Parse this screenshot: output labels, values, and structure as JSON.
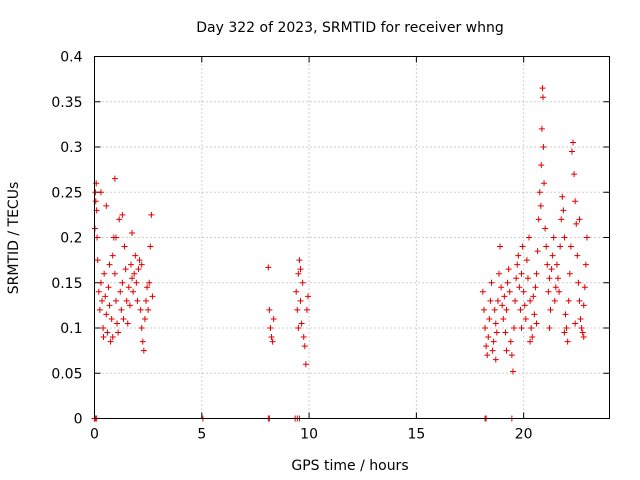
{
  "chart_data": {
    "type": "scatter",
    "title": "Day 322 of 2023, SRMTID for receiver whng",
    "xlabel": "GPS time / hours",
    "ylabel": "SRMTID / TECUs",
    "xlim": [
      0,
      24
    ],
    "ylim": [
      0,
      0.4
    ],
    "grid": true,
    "xticks": [
      0,
      5,
      10,
      15,
      20
    ],
    "xtick_labels": [
      "0",
      "5",
      "10",
      "15",
      "20"
    ],
    "yticks": [
      0,
      0.05,
      0.1,
      0.15,
      0.2,
      0.25,
      0.3,
      0.35,
      0.4
    ],
    "ytick_labels": [
      "0",
      "0.05",
      "0.1",
      "0.15",
      "0.2",
      "0.25",
      "0.3",
      "0.35",
      "0.4"
    ],
    "marker": "plus",
    "color": "#e00000",
    "series": [
      {
        "name": "SRMTID",
        "points": [
          [
            0.02,
            0.21
          ],
          [
            0.04,
            0.25
          ],
          [
            0.06,
            0.24
          ],
          [
            0.08,
            0.26
          ],
          [
            0.1,
            0.23
          ],
          [
            0.12,
            0.2
          ],
          [
            0.15,
            0.175
          ],
          [
            0.2,
            0.14
          ],
          [
            0.25,
            0.12
          ],
          [
            0.3,
            0.15
          ],
          [
            0.35,
            0.13
          ],
          [
            0.4,
            0.1
          ],
          [
            0.45,
            0.16
          ],
          [
            0.5,
            0.135
          ],
          [
            0.55,
            0.115
          ],
          [
            0.6,
            0.095
          ],
          [
            0.65,
            0.145
          ],
          [
            0.7,
            0.125
          ],
          [
            0.75,
            0.085
          ],
          [
            0.8,
            0.11
          ],
          [
            0.85,
            0.18
          ],
          [
            0.9,
            0.2
          ],
          [
            0.95,
            0.16
          ],
          [
            1.0,
            0.13
          ],
          [
            1.05,
            0.105
          ],
          [
            1.1,
            0.095
          ],
          [
            1.15,
            0.22
          ],
          [
            1.2,
            0.14
          ],
          [
            1.25,
            0.12
          ],
          [
            1.3,
            0.15
          ],
          [
            1.35,
            0.11
          ],
          [
            1.4,
            0.19
          ],
          [
            1.45,
            0.165
          ],
          [
            1.5,
            0.13
          ],
          [
            1.55,
            0.105
          ],
          [
            1.6,
            0.145
          ],
          [
            1.65,
            0.125
          ],
          [
            1.7,
            0.17
          ],
          [
            1.75,
            0.155
          ],
          [
            1.8,
            0.14
          ],
          [
            1.85,
            0.16
          ],
          [
            1.9,
            0.18
          ],
          [
            1.95,
            0.15
          ],
          [
            2.0,
            0.13
          ],
          [
            2.05,
            0.165
          ],
          [
            2.1,
            0.175
          ],
          [
            2.15,
            0.12
          ],
          [
            2.2,
            0.1
          ],
          [
            2.25,
            0.085
          ],
          [
            2.3,
            0.075
          ],
          [
            2.35,
            0.11
          ],
          [
            2.4,
            0.13
          ],
          [
            2.45,
            0.145
          ],
          [
            2.5,
            0.12
          ],
          [
            2.55,
            0.15
          ],
          [
            2.6,
            0.19
          ],
          [
            2.65,
            0.225
          ],
          [
            2.7,
            0.135
          ],
          [
            0.3,
            0.25
          ],
          [
            0.55,
            0.235
          ],
          [
            0.95,
            0.265
          ],
          [
            1.0,
            0.2
          ],
          [
            1.3,
            0.225
          ],
          [
            0.7,
            0.17
          ],
          [
            1.75,
            0.205
          ],
          [
            2.2,
            0.17
          ],
          [
            0.42,
            0.09
          ],
          [
            0.85,
            0.09
          ],
          [
            8.1,
            0.167
          ],
          [
            8.15,
            0.12
          ],
          [
            8.2,
            0.1
          ],
          [
            8.25,
            0.09
          ],
          [
            8.3,
            0.085
          ],
          [
            8.35,
            0.11
          ],
          [
            9.4,
            0.14
          ],
          [
            9.45,
            0.12
          ],
          [
            9.5,
            0.16
          ],
          [
            9.55,
            0.175
          ],
          [
            9.6,
            0.13
          ],
          [
            9.65,
            0.105
          ],
          [
            9.7,
            0.15
          ],
          [
            9.75,
            0.09
          ],
          [
            9.8,
            0.08
          ],
          [
            9.85,
            0.06
          ],
          [
            9.9,
            0.12
          ],
          [
            9.95,
            0.135
          ],
          [
            9.5,
            0.1
          ],
          [
            9.6,
            0.165
          ],
          [
            18.1,
            0.14
          ],
          [
            18.15,
            0.12
          ],
          [
            18.2,
            0.1
          ],
          [
            18.25,
            0.08
          ],
          [
            18.3,
            0.07
          ],
          [
            18.35,
            0.09
          ],
          [
            18.4,
            0.11
          ],
          [
            18.45,
            0.13
          ],
          [
            18.5,
            0.15
          ],
          [
            18.55,
            0.075
          ],
          [
            18.6,
            0.085
          ],
          [
            18.65,
            0.12
          ],
          [
            18.7,
            0.105
          ],
          [
            18.75,
            0.095
          ],
          [
            18.8,
            0.13
          ],
          [
            18.85,
            0.16
          ],
          [
            18.9,
            0.19
          ],
          [
            18.95,
            0.145
          ],
          [
            19.0,
            0.125
          ],
          [
            19.05,
            0.11
          ],
          [
            19.1,
            0.135
          ],
          [
            19.15,
            0.095
          ],
          [
            19.2,
            0.12
          ],
          [
            19.25,
            0.15
          ],
          [
            19.3,
            0.165
          ],
          [
            19.35,
            0.14
          ],
          [
            19.4,
            0.085
          ],
          [
            19.45,
            0.07
          ],
          [
            19.5,
            0.052
          ],
          [
            19.55,
            0.1
          ],
          [
            19.6,
            0.13
          ],
          [
            19.65,
            0.155
          ],
          [
            19.7,
            0.17
          ],
          [
            19.75,
            0.18
          ],
          [
            19.8,
            0.145
          ],
          [
            19.85,
            0.12
          ],
          [
            19.9,
            0.16
          ],
          [
            19.95,
            0.19
          ],
          [
            20.0,
            0.14
          ],
          [
            20.05,
            0.125
          ],
          [
            20.1,
            0.11
          ],
          [
            20.15,
            0.175
          ],
          [
            20.2,
            0.155
          ],
          [
            20.25,
            0.2
          ],
          [
            20.3,
            0.13
          ],
          [
            20.35,
            0.1
          ],
          [
            20.4,
            0.09
          ],
          [
            20.45,
            0.135
          ],
          [
            20.5,
            0.115
          ],
          [
            20.55,
            0.145
          ],
          [
            20.6,
            0.16
          ],
          [
            20.65,
            0.185
          ],
          [
            20.7,
            0.22
          ],
          [
            20.75,
            0.25
          ],
          [
            20.8,
            0.235
          ],
          [
            20.82,
            0.28
          ],
          [
            20.85,
            0.32
          ],
          [
            20.88,
            0.365
          ],
          [
            20.9,
            0.355
          ],
          [
            20.92,
            0.3
          ],
          [
            20.95,
            0.26
          ],
          [
            21.0,
            0.21
          ],
          [
            21.05,
            0.19
          ],
          [
            21.1,
            0.17
          ],
          [
            21.15,
            0.14
          ],
          [
            21.2,
            0.155
          ],
          [
            21.25,
            0.12
          ],
          [
            21.3,
            0.165
          ],
          [
            21.35,
            0.18
          ],
          [
            21.4,
            0.2
          ],
          [
            21.45,
            0.13
          ],
          [
            21.5,
            0.145
          ],
          [
            21.55,
            0.17
          ],
          [
            21.6,
            0.155
          ],
          [
            21.65,
            0.14
          ],
          [
            21.7,
            0.19
          ],
          [
            21.75,
            0.22
          ],
          [
            21.8,
            0.245
          ],
          [
            21.85,
            0.23
          ],
          [
            21.9,
            0.2
          ],
          [
            21.95,
            0.115
          ],
          [
            22.0,
            0.1
          ],
          [
            22.05,
            0.085
          ],
          [
            22.1,
            0.13
          ],
          [
            22.15,
            0.16
          ],
          [
            22.2,
            0.19
          ],
          [
            22.25,
            0.295
          ],
          [
            22.3,
            0.305
          ],
          [
            22.35,
            0.27
          ],
          [
            22.4,
            0.24
          ],
          [
            22.45,
            0.215
          ],
          [
            22.5,
            0.18
          ],
          [
            22.55,
            0.15
          ],
          [
            22.6,
            0.13
          ],
          [
            22.65,
            0.11
          ],
          [
            22.7,
            0.1
          ],
          [
            22.75,
            0.095
          ],
          [
            22.8,
            0.125
          ],
          [
            22.85,
            0.145
          ],
          [
            22.9,
            0.17
          ],
          [
            22.95,
            0.2
          ],
          [
            22.4,
            0.105
          ],
          [
            22.6,
            0.22
          ],
          [
            21.9,
            0.095
          ],
          [
            21.2,
            0.1
          ],
          [
            20.6,
            0.105
          ],
          [
            20.3,
            0.085
          ],
          [
            19.9,
            0.1
          ],
          [
            19.2,
            0.075
          ],
          [
            18.7,
            0.065
          ],
          [
            22.8,
            0.09
          ],
          [
            0.0,
            0.0
          ],
          [
            0.05,
            0.0
          ],
          [
            0.1,
            0.0
          ],
          [
            5.05,
            0.0
          ],
          [
            8.1,
            0.0
          ],
          [
            8.15,
            0.0
          ],
          [
            9.35,
            0.0
          ],
          [
            9.45,
            0.0
          ],
          [
            9.55,
            0.0
          ],
          [
            18.2,
            0.0
          ],
          [
            18.25,
            0.0
          ],
          [
            19.45,
            0.0
          ]
        ]
      }
    ]
  }
}
